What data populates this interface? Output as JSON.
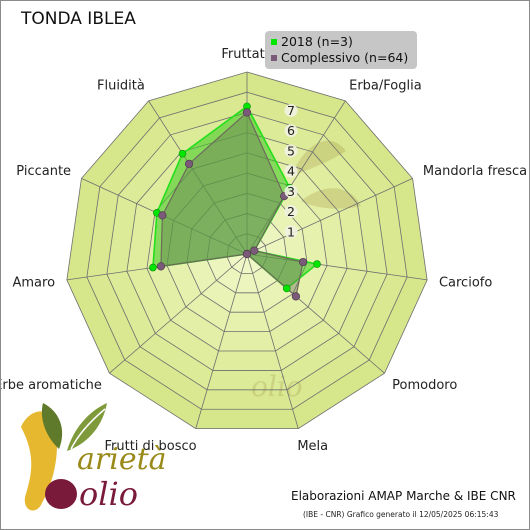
{
  "title": "TONDA IBLEA",
  "chart_data": {
    "type": "radar",
    "axes": [
      "Fruttato",
      "Erba/Foglia",
      "Mandorla fresca",
      "Carciofo",
      "Pomodoro",
      "Mela",
      "Frutti di bosco",
      "Erbe aromatiche",
      "Amaro",
      "Piccante",
      "Fluidità"
    ],
    "rlim": [
      0,
      9
    ],
    "ticks": [
      "1",
      "2",
      "3",
      "4",
      "5",
      "6",
      "7"
    ],
    "series": [
      {
        "name": "2018 (n=3)",
        "color": "#00e600",
        "values": [
          7.3,
          3.9,
          0.4,
          3.5,
          2.6,
          0.0,
          0.0,
          0.0,
          4.7,
          4.9,
          5.9
        ]
      },
      {
        "name": "Complessivo (n=64)",
        "color": "#7a5a78",
        "values": [
          7.0,
          3.4,
          0.4,
          2.8,
          3.2,
          0.0,
          0.0,
          0.0,
          4.3,
          4.6,
          5.3
        ]
      }
    ],
    "legend": "top-right",
    "grid": true
  },
  "legend": {
    "items": [
      {
        "label": "2018 (n=3)",
        "color": "#00e600"
      },
      {
        "label": "Complessivo (n=64)",
        "color": "#7a5a78"
      }
    ]
  },
  "credit": "Elaborazioni AMAP Marche & IBE CNR",
  "generated_note": "(IBE - CNR) Grafico generato il 12/05/2025 06:15:43",
  "logo": {
    "text_top": "arietà",
    "text_bottom": "olio"
  }
}
